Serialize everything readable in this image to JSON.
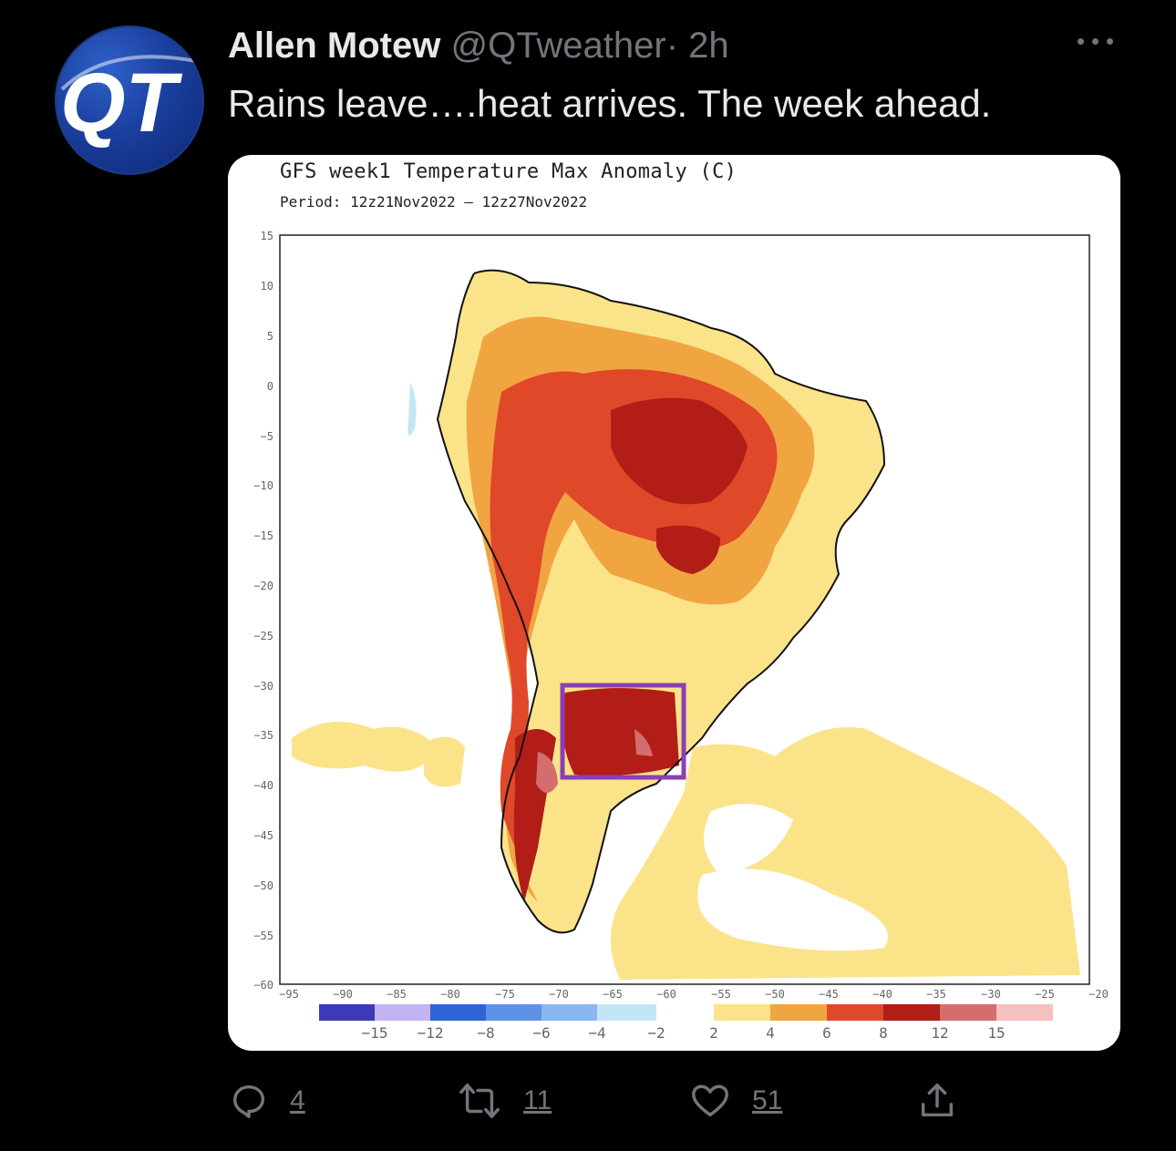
{
  "tweet": {
    "author_name": "Allen Motew",
    "handle": "@QTweather",
    "separator": "·",
    "time": "2h",
    "text": "Rains leave….heat arrives. The week ahead.",
    "avatar_text": "QT"
  },
  "map": {
    "title": "GFS week1 Temperature Max Anomaly (C)",
    "period": "Period: 12z21Nov2022 – 12z27Nov2022",
    "y_ticks": [
      "15",
      "10",
      "5",
      "0",
      "−5",
      "−10",
      "−15",
      "−20",
      "−25",
      "−30",
      "−35",
      "−40",
      "−45",
      "−50",
      "−55",
      "−60"
    ],
    "x_ticks": [
      "−95",
      "−90",
      "−85",
      "−80",
      "−75",
      "−70",
      "−65",
      "−60",
      "−55",
      "−50",
      "−45",
      "−40",
      "−35",
      "−30",
      "−25",
      "−20"
    ],
    "colorbar_labels": [
      "−15",
      "−12",
      "−8",
      "−6",
      "−4",
      "−2",
      "2",
      "4",
      "6",
      "8",
      "12",
      "15"
    ],
    "colorbar_colors": [
      "#3c3ab8",
      "#c2b4f0",
      "#2f64d6",
      "#5e92e8",
      "#8ab6f2",
      "#c3e6f6",
      "#ffffff",
      "#fbe38a",
      "#f0a541",
      "#e0482a",
      "#b21d18",
      "#d46d6d",
      "#f5c0c0"
    ],
    "highlight_box_color": "#8b3fb5"
  },
  "actions": {
    "reply_count": "4",
    "retweet_count": "11",
    "like_count": "51"
  }
}
